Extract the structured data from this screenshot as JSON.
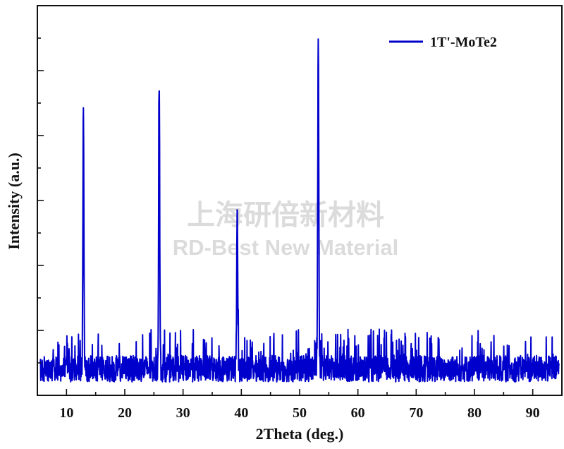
{
  "chart_data": {
    "type": "line",
    "title": "",
    "xlabel": "2Theta (deg.)",
    "ylabel": "Intensity (a.u.)",
    "xlim": [
      5,
      95
    ],
    "ylim": [
      0,
      100
    ],
    "x_ticks": [
      10,
      20,
      30,
      40,
      50,
      60,
      70,
      80,
      90
    ],
    "y_ticks_labeled": false,
    "grid": false,
    "legend_position": "top-right",
    "series": [
      {
        "name": "1T'-MoTe2",
        "color": "#0000cc",
        "peaks": [
          {
            "x": 12.9,
            "y": 78
          },
          {
            "x": 25.9,
            "y": 86
          },
          {
            "x": 39.3,
            "y": 49
          },
          {
            "x": 53.2,
            "y": 103
          }
        ],
        "baseline_noise": {
          "x_start": 5.5,
          "x_end": 94.5,
          "level": 3,
          "amplitude": 10
        }
      }
    ]
  },
  "watermark": {
    "line1": "上海研倍新材料",
    "line2": "RD-Best New Material"
  }
}
